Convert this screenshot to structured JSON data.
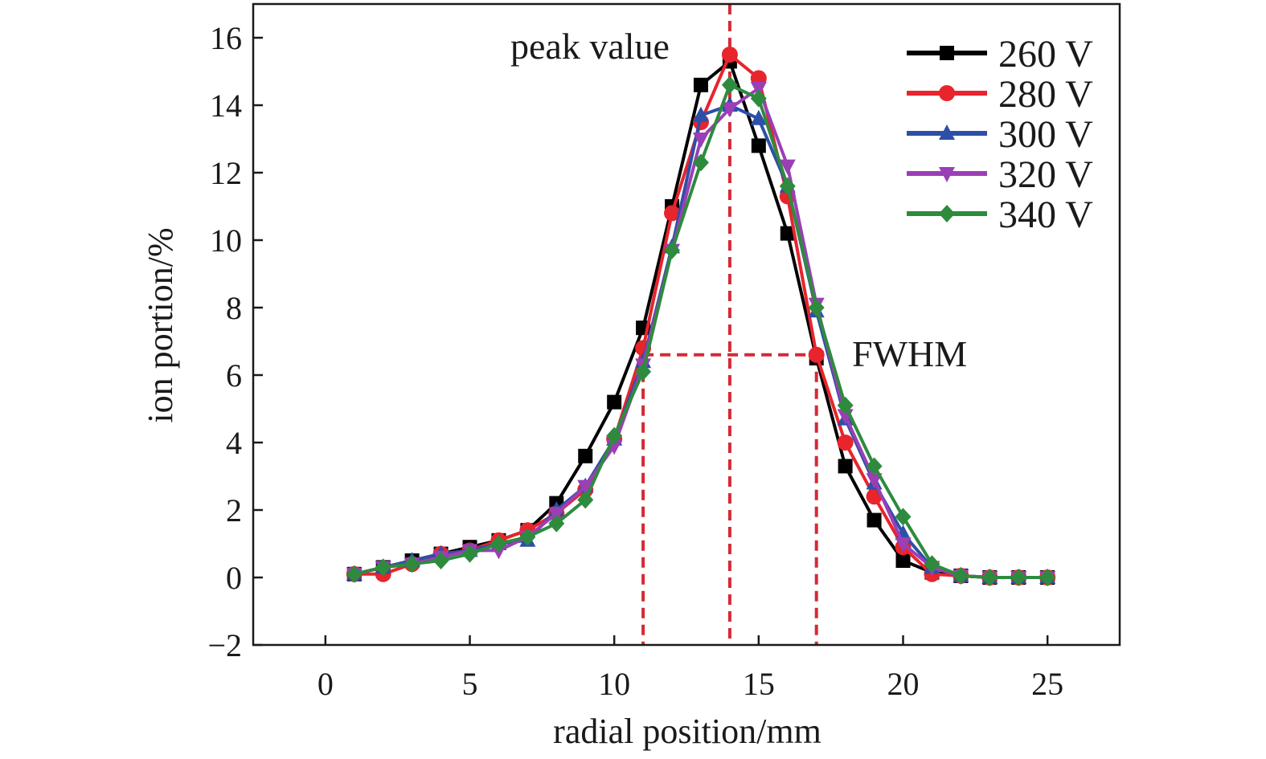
{
  "chart_data": {
    "type": "line",
    "title": "",
    "xlabel": "radial position/mm",
    "ylabel": "ion portion/%",
    "xlim": [
      -2.5,
      27.5
    ],
    "ylim": [
      -2,
      17
    ],
    "xticks": [
      0,
      5,
      10,
      15,
      20,
      25
    ],
    "yticks": [
      -2,
      0,
      2,
      4,
      6,
      8,
      10,
      12,
      14,
      16
    ],
    "xtick_labels": [
      "0",
      "5",
      "10",
      "15",
      "20",
      "25"
    ],
    "ytick_labels": [
      "−2",
      "0",
      "2",
      "4",
      "6",
      "8",
      "10",
      "12",
      "14",
      "16"
    ],
    "grid": false,
    "legend_position": "top-right",
    "x": [
      1,
      2,
      3,
      4,
      5,
      6,
      7,
      8,
      9,
      10,
      11,
      12,
      13,
      14,
      15,
      16,
      17,
      18,
      19,
      20,
      21,
      22,
      23,
      24,
      25
    ],
    "series": [
      {
        "name": "260 V",
        "color": "#000000",
        "marker": "square",
        "values": [
          0.1,
          0.3,
          0.5,
          0.7,
          0.9,
          1.1,
          1.4,
          2.2,
          3.6,
          5.2,
          7.4,
          11.0,
          14.6,
          15.3,
          12.8,
          10.2,
          6.5,
          3.3,
          1.7,
          0.5,
          0.15,
          0.05,
          0.0,
          0.0,
          0.0
        ]
      },
      {
        "name": "280 V",
        "color": "#e8242c",
        "marker": "circle",
        "values": [
          0.1,
          0.1,
          0.4,
          0.7,
          0.8,
          1.1,
          1.4,
          1.9,
          2.6,
          4.1,
          6.8,
          10.8,
          13.5,
          15.5,
          14.8,
          11.3,
          6.6,
          4.0,
          2.4,
          0.9,
          0.1,
          0.05,
          0.0,
          0.0,
          0.0
        ]
      },
      {
        "name": "300 V",
        "color": "#2e4fa8",
        "marker": "triangle-up",
        "values": [
          0.1,
          0.3,
          0.5,
          0.7,
          0.8,
          1.0,
          1.1,
          2.0,
          2.7,
          4.1,
          6.4,
          9.8,
          13.7,
          14.0,
          13.6,
          11.6,
          7.9,
          4.7,
          2.8,
          1.3,
          0.3,
          0.05,
          0.0,
          0.0,
          0.0
        ]
      },
      {
        "name": "320 V",
        "color": "#9b3fb5",
        "marker": "triangle-down",
        "values": [
          0.1,
          0.3,
          0.4,
          0.6,
          0.8,
          0.8,
          1.2,
          1.9,
          2.7,
          3.9,
          6.3,
          9.7,
          13.0,
          13.9,
          14.5,
          12.2,
          8.1,
          4.8,
          2.9,
          1.0,
          0.3,
          0.05,
          0.0,
          0.0,
          0.0
        ]
      },
      {
        "name": "340 V",
        "color": "#2e8b3e",
        "marker": "diamond",
        "values": [
          0.1,
          0.3,
          0.4,
          0.5,
          0.7,
          1.0,
          1.2,
          1.6,
          2.3,
          4.2,
          6.1,
          9.7,
          12.3,
          14.6,
          14.2,
          11.6,
          8.0,
          5.1,
          3.3,
          1.8,
          0.4,
          0.05,
          0.0,
          0.0,
          0.0
        ]
      }
    ],
    "annotations": [
      {
        "name": "peak-value",
        "text": "peak value",
        "color": "#d42a36",
        "vline_x": 14
      },
      {
        "name": "fwhm",
        "text": "FWHM",
        "color": "#d42a36",
        "hline_y": 6.6,
        "vline_x": [
          11,
          17
        ]
      }
    ]
  }
}
